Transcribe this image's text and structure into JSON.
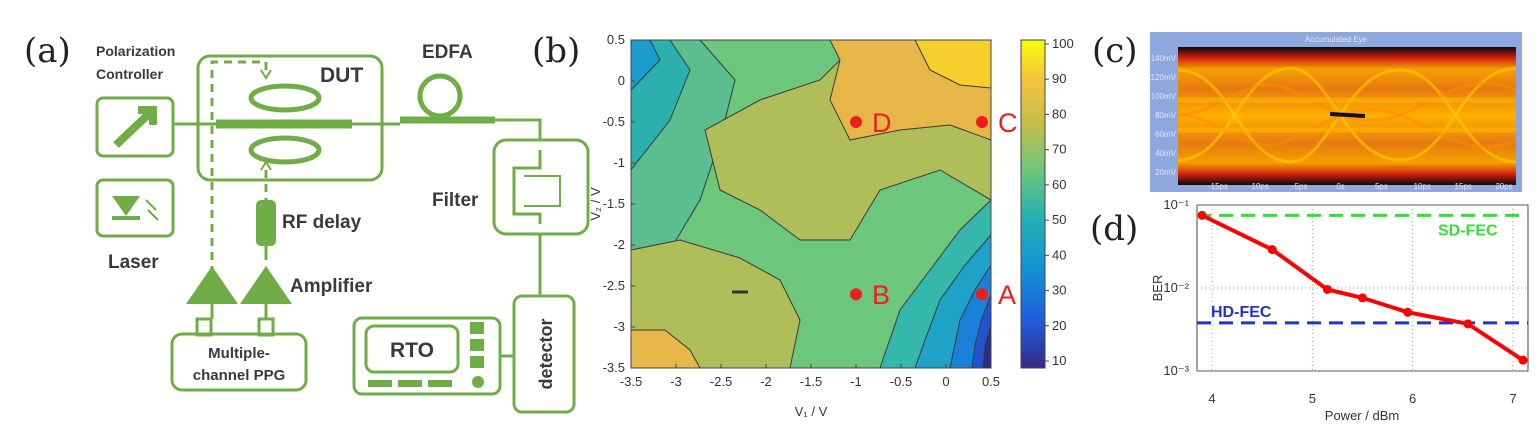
{
  "panels": {
    "a": "(a)",
    "b": "(b)",
    "c": "(c)",
    "d": "(d)"
  },
  "setup": {
    "polarization_controller_line1": "Polarization",
    "polarization_controller_line2": "Controller",
    "dut": "DUT",
    "edfa": "EDFA",
    "filter": "Filter",
    "laser": "Laser",
    "rf_delay": "RF delay",
    "amplifier": "Amplifier",
    "ppg_line1": "Multiple-",
    "ppg_line2": "channel PPG",
    "rto": "RTO",
    "detector": "detector",
    "color": "#70ad47"
  },
  "contour": {
    "xlabel": "V₁ / V",
    "ylabel": "V₂ / V",
    "xticks": [
      "-3.5",
      "-3",
      "-2.5",
      "-2",
      "-1.5",
      "-1",
      "-0.5",
      "0",
      "0.5"
    ],
    "yticks": [
      "0.5",
      "0",
      "-0.5",
      "-1",
      "-1.5",
      "-2",
      "-2.5",
      "-3",
      "-3.5"
    ],
    "colorbar_ticks": [
      "100",
      "90",
      "80",
      "70",
      "60",
      "50",
      "40",
      "30",
      "20",
      "10"
    ],
    "points": [
      {
        "label": "D",
        "x": -1,
        "y": -0.5
      },
      {
        "label": "C",
        "x": 0.4,
        "y": -0.5
      },
      {
        "label": "B",
        "x": -1,
        "y": -2.6
      },
      {
        "label": "A",
        "x": 0.4,
        "y": -2.6
      }
    ]
  },
  "eye": {
    "title": "Accumulated Eye",
    "yticks": [
      "140mV",
      "120mV",
      "100mV",
      "80mV",
      "60mV",
      "40mV",
      "20mV"
    ],
    "xticks": [
      "-15ps",
      "-10ps",
      "-5ps",
      "0s",
      "5ps",
      "10ps",
      "15ps",
      "20ps"
    ]
  },
  "chart_data": {
    "type": "line",
    "xlabel": "Power / dBm",
    "ylabel": "BER",
    "x_ticks": [
      "4",
      "5",
      "6",
      "7"
    ],
    "y_ticks": [
      "10⁻¹",
      "10⁻²",
      "10⁻³"
    ],
    "xlim": [
      3.85,
      7.15
    ],
    "ylim": [
      0.001,
      0.1
    ],
    "y_scale": "log",
    "grid": true,
    "series": [
      {
        "color": "#ff0000",
        "x": [
          3.9,
          4.6,
          5.15,
          5.5,
          5.95,
          6.55,
          7.1
        ],
        "y": [
          0.075,
          0.029,
          0.0096,
          0.0076,
          0.0051,
          0.0037,
          0.00135
        ]
      }
    ],
    "thresholds": [
      {
        "label": "SD-FEC",
        "y": 0.075,
        "color": "#33dd33"
      },
      {
        "label": "HD-FEC",
        "y": 0.0038,
        "color": "#2233cc"
      }
    ]
  }
}
